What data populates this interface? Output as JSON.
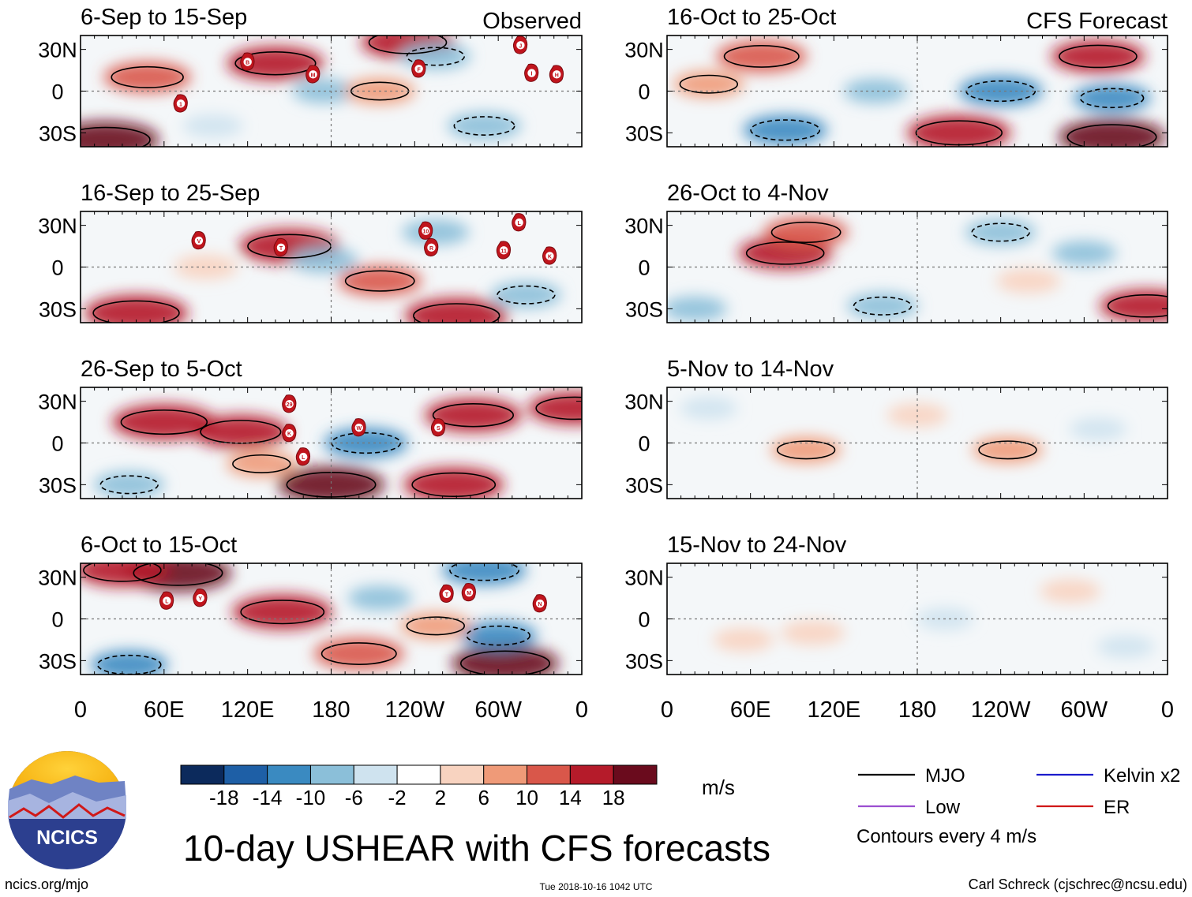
{
  "chart_data": {
    "type": "heatmap",
    "title": "10-day USHEAR with CFS forecasts",
    "panel_headers": {
      "observed": "Observed",
      "forecast": "CFS Forecast"
    },
    "y_ticks": [
      "30N",
      "0",
      "30S"
    ],
    "y_range": [
      -40,
      40
    ],
    "x_ticks": [
      "0",
      "60E",
      "120E",
      "180",
      "120W",
      "60W",
      "0"
    ],
    "x_range": [
      0,
      360
    ],
    "units": "m/s",
    "colorbar": {
      "levels": [
        "-18",
        "-14",
        "-10",
        "-6",
        "-2",
        "2",
        "6",
        "10",
        "14",
        "18"
      ],
      "colors": [
        "#0c2a5c",
        "#1e5fa6",
        "#3a8ac1",
        "#8bbfd9",
        "#cfe3ef",
        "#ffffff",
        "#f8d3c0",
        "#ef9a78",
        "#d9574a",
        "#b51b2a",
        "#6a0b1d"
      ]
    },
    "legend": {
      "items": [
        {
          "label": "MJO",
          "color": "#000000"
        },
        {
          "label": "Kelvin x2",
          "color": "#1a1acc"
        },
        {
          "label": "Low",
          "color": "#9b4fd0"
        },
        {
          "label": "ER",
          "color": "#d01818"
        }
      ],
      "note": "Contours every 4 m/s"
    },
    "panels": [
      {
        "id": "obs1",
        "column": "observed",
        "title": "6-Sep to 15-Sep",
        "header": "observed",
        "storms": [
          {
            "label": "B",
            "lon": 120,
            "lat": 21
          },
          {
            "label": "M",
            "lon": 167,
            "lat": 12
          },
          {
            "label": "1",
            "lon": 72,
            "lat": -9
          },
          {
            "label": "F",
            "lon": 243,
            "lat": 16
          },
          {
            "label": "J",
            "lon": 316,
            "lat": 33
          },
          {
            "label": "I",
            "lon": 324,
            "lat": 13
          },
          {
            "label": "H",
            "lon": 342,
            "lat": 12
          }
        ],
        "anomalies": [
          {
            "lon": 48,
            "lat": 10,
            "value": 13
          },
          {
            "lon": 140,
            "lat": 20,
            "value": 16
          },
          {
            "lon": 18,
            "lat": -35,
            "value": 19
          },
          {
            "lon": 235,
            "lat": 35,
            "value": 15
          },
          {
            "lon": 175,
            "lat": 0,
            "value": -6
          },
          {
            "lon": 255,
            "lat": 25,
            "value": -8
          },
          {
            "lon": 290,
            "lat": -25,
            "value": -9
          },
          {
            "lon": 215,
            "lat": 0,
            "value": 8
          },
          {
            "lon": 95,
            "lat": -25,
            "value": -5
          }
        ]
      },
      {
        "id": "obs2",
        "column": "observed",
        "title": "16-Sep to 25-Sep",
        "storms": [
          {
            "label": "V",
            "lon": 85,
            "lat": 19
          },
          {
            "label": "T",
            "lon": 144,
            "lat": 14
          },
          {
            "label": "10",
            "lon": 248,
            "lat": 26
          },
          {
            "label": "R",
            "lon": 252,
            "lat": 14
          },
          {
            "label": "L",
            "lon": 315,
            "lat": 32
          },
          {
            "label": "11",
            "lon": 304,
            "lat": 12
          },
          {
            "label": "K",
            "lon": 337,
            "lat": 8
          }
        ],
        "anomalies": [
          {
            "lon": 150,
            "lat": 15,
            "value": 17
          },
          {
            "lon": 40,
            "lat": -33,
            "value": 18
          },
          {
            "lon": 270,
            "lat": -35,
            "value": 18
          },
          {
            "lon": 215,
            "lat": -10,
            "value": 12
          },
          {
            "lon": 175,
            "lat": 5,
            "value": -7
          },
          {
            "lon": 255,
            "lat": 25,
            "value": -7
          },
          {
            "lon": 320,
            "lat": -20,
            "value": -8
          },
          {
            "lon": 90,
            "lat": 0,
            "value": 6
          }
        ]
      },
      {
        "id": "obs3",
        "column": "observed",
        "title": "26-Sep to 5-Oct",
        "storms": [
          {
            "label": "29",
            "lon": 150,
            "lat": 28
          },
          {
            "label": "K",
            "lon": 150,
            "lat": 7
          },
          {
            "label": "L",
            "lon": 160,
            "lat": -10
          },
          {
            "label": "W",
            "lon": 200,
            "lat": 11
          },
          {
            "label": "S",
            "lon": 257,
            "lat": 11
          }
        ],
        "anomalies": [
          {
            "lon": 60,
            "lat": 15,
            "value": 18
          },
          {
            "lon": 115,
            "lat": 8,
            "value": 16
          },
          {
            "lon": 180,
            "lat": -30,
            "value": 19
          },
          {
            "lon": 268,
            "lat": -30,
            "value": 17
          },
          {
            "lon": 282,
            "lat": 20,
            "value": 16
          },
          {
            "lon": 205,
            "lat": 0,
            "value": -12
          },
          {
            "lon": 35,
            "lat": -30,
            "value": -8
          },
          {
            "lon": 355,
            "lat": 25,
            "value": 15
          },
          {
            "lon": 130,
            "lat": -15,
            "value": 8
          }
        ]
      },
      {
        "id": "obs4",
        "column": "observed",
        "title": "6-Oct to 15-Oct",
        "storms": [
          {
            "label": "L",
            "lon": 62,
            "lat": 13
          },
          {
            "label": "Y",
            "lon": 86,
            "lat": 15
          },
          {
            "label": "T",
            "lon": 263,
            "lat": 18
          },
          {
            "label": "M",
            "lon": 279,
            "lat": 19
          },
          {
            "label": "N",
            "lon": 330,
            "lat": 11
          }
        ],
        "anomalies": [
          {
            "lon": 70,
            "lat": 33,
            "value": 19
          },
          {
            "lon": 145,
            "lat": 5,
            "value": 17
          },
          {
            "lon": 30,
            "lat": 35,
            "value": 15
          },
          {
            "lon": 305,
            "lat": -32,
            "value": 19
          },
          {
            "lon": 200,
            "lat": -25,
            "value": 14
          },
          {
            "lon": 290,
            "lat": 35,
            "value": -12
          },
          {
            "lon": 300,
            "lat": -12,
            "value": -10
          },
          {
            "lon": 35,
            "lat": -33,
            "value": -10
          },
          {
            "lon": 215,
            "lat": 15,
            "value": -6
          },
          {
            "lon": 255,
            "lat": -5,
            "value": 8
          }
        ]
      },
      {
        "id": "fc1",
        "column": "forecast",
        "title": "16-Oct to 25-Oct",
        "header": "forecast",
        "storms": [],
        "anomalies": [
          {
            "lon": 68,
            "lat": 25,
            "value": 14
          },
          {
            "lon": 210,
            "lat": -30,
            "value": 18
          },
          {
            "lon": 320,
            "lat": -33,
            "value": 19
          },
          {
            "lon": 310,
            "lat": 25,
            "value": 15
          },
          {
            "lon": 85,
            "lat": -28,
            "value": -12
          },
          {
            "lon": 240,
            "lat": 0,
            "value": -12
          },
          {
            "lon": 320,
            "lat": -5,
            "value": -10
          },
          {
            "lon": 150,
            "lat": 0,
            "value": -6
          },
          {
            "lon": 30,
            "lat": 5,
            "value": 8
          }
        ]
      },
      {
        "id": "fc2",
        "column": "forecast",
        "title": "26-Oct to 4-Nov",
        "storms": [],
        "anomalies": [
          {
            "lon": 85,
            "lat": 10,
            "value": 15
          },
          {
            "lon": 100,
            "lat": 25,
            "value": 12
          },
          {
            "lon": 345,
            "lat": -28,
            "value": 15
          },
          {
            "lon": 155,
            "lat": -28,
            "value": -8
          },
          {
            "lon": 240,
            "lat": 25,
            "value": -8
          },
          {
            "lon": 300,
            "lat": 10,
            "value": -6
          },
          {
            "lon": 20,
            "lat": -30,
            "value": -6
          },
          {
            "lon": 260,
            "lat": -10,
            "value": 6
          }
        ]
      },
      {
        "id": "fc3",
        "column": "forecast",
        "title": "5-Nov to 14-Nov",
        "storms": [],
        "anomalies": [
          {
            "lon": 100,
            "lat": -5,
            "value": 8
          },
          {
            "lon": 245,
            "lat": -5,
            "value": 8
          },
          {
            "lon": 310,
            "lat": 10,
            "value": -4
          },
          {
            "lon": 30,
            "lat": 25,
            "value": -4
          },
          {
            "lon": 180,
            "lat": 20,
            "value": 5
          }
        ]
      },
      {
        "id": "fc4",
        "column": "forecast",
        "title": "15-Nov to 24-Nov",
        "storms": [],
        "anomalies": [
          {
            "lon": 105,
            "lat": -10,
            "value": 6
          },
          {
            "lon": 290,
            "lat": 20,
            "value": 5
          },
          {
            "lon": 200,
            "lat": 0,
            "value": -4
          },
          {
            "lon": 55,
            "lat": -15,
            "value": 5
          },
          {
            "lon": 330,
            "lat": -20,
            "value": -4
          }
        ]
      }
    ]
  },
  "logo": {
    "text": "NCICS"
  },
  "footer": {
    "url": "ncics.org/mjo",
    "timestamp": "Tue 2018-10-16 1042 UTC",
    "author": "Carl Schreck (cjschrec@ncsu.edu)"
  }
}
